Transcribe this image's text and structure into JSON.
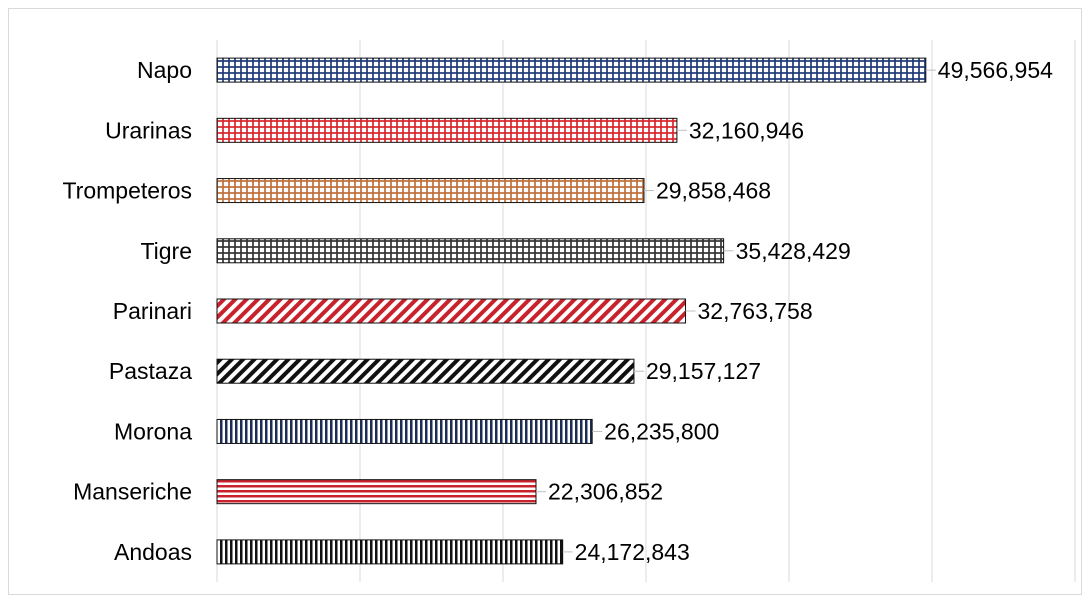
{
  "chart_data": {
    "type": "bar",
    "orientation": "horizontal",
    "categories": [
      "Napo",
      "Urarinas",
      "Trompeteros",
      "Tigre",
      "Parinari",
      "Pastaza",
      "Morona",
      "Manseriche",
      "Andoas"
    ],
    "values": [
      49566954,
      32160946,
      29858468,
      35428429,
      32763758,
      29157127,
      26235800,
      22306852,
      24172843
    ],
    "value_labels": [
      "49,566,954",
      "32,160,946",
      "29,858,468",
      "35,428,429",
      "32,763,758",
      "29,157,127",
      "26,235,800",
      "22,306,852",
      "24,172,843"
    ],
    "xlim": [
      0,
      60000000
    ],
    "grid": true,
    "legend": "none",
    "bar_styles": [
      {
        "pattern": "grid",
        "color": "#1f3a78"
      },
      {
        "pattern": "grid",
        "color": "#d9262b"
      },
      {
        "pattern": "grid",
        "color": "#c0703a"
      },
      {
        "pattern": "grid",
        "color": "#333333"
      },
      {
        "pattern": "diagonal",
        "color": "#c8232c"
      },
      {
        "pattern": "diagonal",
        "color": "#111111"
      },
      {
        "pattern": "vertical",
        "color": "#1b2d55"
      },
      {
        "pattern": "horizontal",
        "color": "#c8232c"
      },
      {
        "pattern": "vertical",
        "color": "#111111"
      }
    ]
  }
}
